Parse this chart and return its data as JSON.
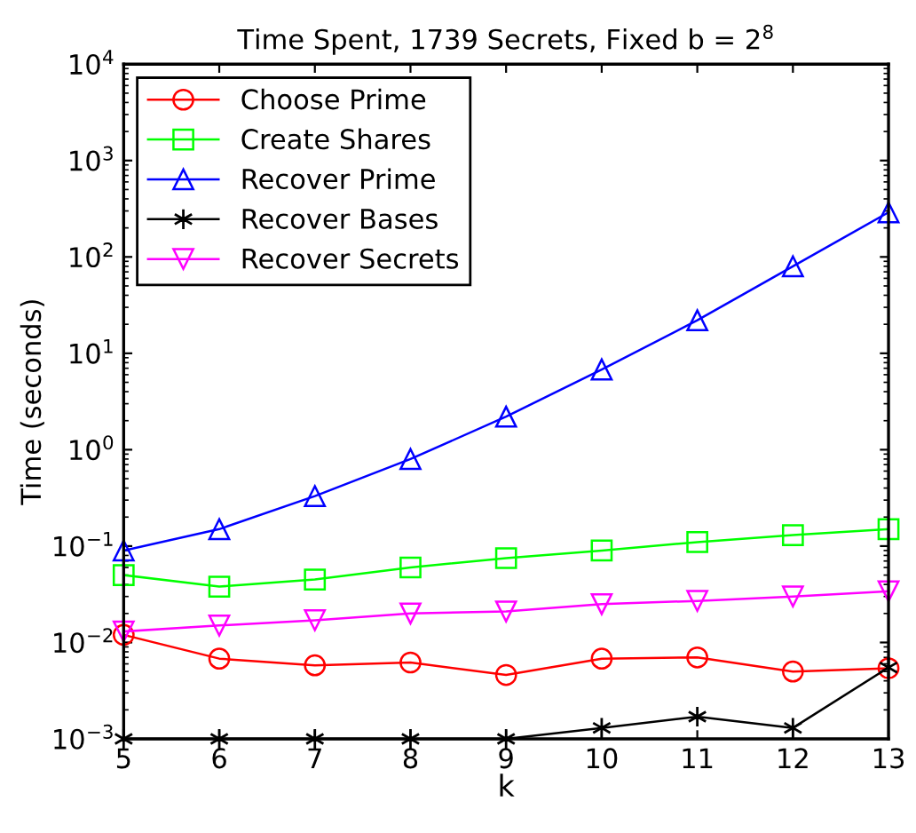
{
  "chart_data": {
    "type": "line",
    "title": "Time Spent, 1739 Secrets, Fixed b = 2$^{8}$",
    "xlabel": "k",
    "ylabel": "Time (seconds)",
    "x": [
      5,
      6,
      7,
      8,
      9,
      10,
      11,
      12,
      13
    ],
    "series": [
      {
        "name": "Choose Prime",
        "color": "#ff0000",
        "marker": "circle",
        "values": [
          0.012,
          0.0068,
          0.0058,
          0.0062,
          0.0046,
          0.0068,
          0.007,
          0.005,
          0.0054
        ]
      },
      {
        "name": "Create Shares",
        "color": "#00ff00",
        "marker": "square",
        "values": [
          0.05,
          0.038,
          0.045,
          0.06,
          0.075,
          0.09,
          0.11,
          0.13,
          0.15
        ]
      },
      {
        "name": "Recover Prime",
        "color": "#0000ff",
        "marker": "triangle",
        "values": [
          0.09,
          0.15,
          0.33,
          0.8,
          2.2,
          6.8,
          22,
          80,
          290
        ]
      },
      {
        "name": "Recover Bases",
        "color": "#000000",
        "marker": "cross",
        "values": [
          0.001,
          0.001,
          0.001,
          0.001,
          0.001,
          0.0013,
          0.0017,
          0.0013,
          0.0055
        ]
      },
      {
        "name": "Recover Secrets",
        "color": "#ff00ff",
        "marker": "triangle_down",
        "values": [
          0.013,
          0.015,
          0.017,
          0.02,
          0.021,
          0.025,
          0.027,
          0.03,
          0.034
        ]
      }
    ],
    "log": "y",
    "xlim": [
      5,
      13
    ],
    "xticks": [
      5,
      6,
      7,
      8,
      9,
      10,
      11,
      12,
      13
    ],
    "ylim": [
      0.001,
      10000
    ],
    "yticks": [
      {
        "value": 0.001,
        "label": "10$^{−3}$"
      },
      {
        "value": 0.01,
        "label": "10$^{−2}$"
      },
      {
        "value": 0.1,
        "label": "10$^{−1}$"
      },
      {
        "value": 1,
        "label": "10$^{0}$"
      },
      {
        "value": 10,
        "label": "10$^{1}$"
      },
      {
        "value": 100,
        "label": "10$^{2}$"
      },
      {
        "value": 1000,
        "label": "10$^{3}$"
      },
      {
        "value": 10000,
        "label": "10$^{4}$"
      }
    ],
    "legend": "top left",
    "grid": false,
    "line_style": "solid"
  }
}
